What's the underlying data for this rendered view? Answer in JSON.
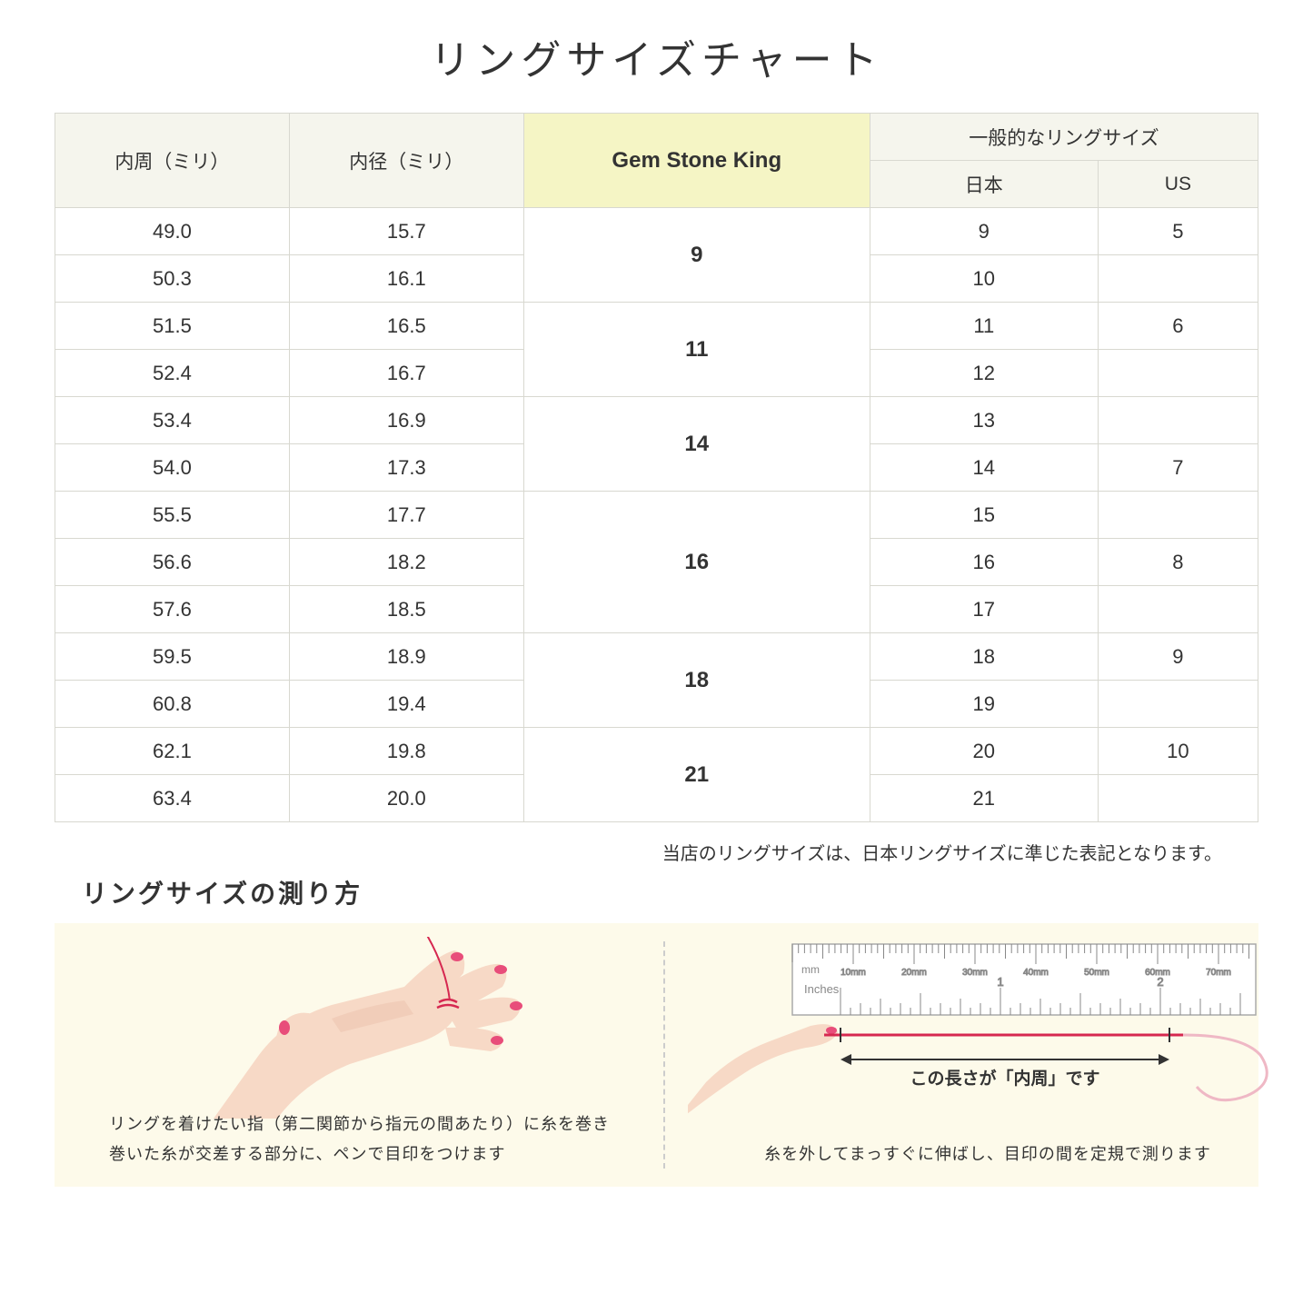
{
  "title": "リングサイズチャート",
  "table": {
    "headers": {
      "col1": "内周（ミリ）",
      "col2": "内径（ミリ）",
      "col3": "Gem Stone King",
      "col4_group": "一般的なリングサイズ",
      "col4a": "日本",
      "col4b": "US"
    },
    "rows": [
      {
        "c": "49.0",
        "d": "15.7",
        "gsk": "9",
        "jp": "9",
        "us": "5",
        "gsk_span": 2
      },
      {
        "c": "50.3",
        "d": "16.1",
        "jp": "10",
        "us": ""
      },
      {
        "c": "51.5",
        "d": "16.5",
        "gsk": "11",
        "jp": "11",
        "us": "6",
        "gsk_span": 2
      },
      {
        "c": "52.4",
        "d": "16.7",
        "jp": "12",
        "us": ""
      },
      {
        "c": "53.4",
        "d": "16.9",
        "gsk": "14",
        "jp": "13",
        "us": "",
        "gsk_span": 2
      },
      {
        "c": "54.0",
        "d": "17.3",
        "jp": "14",
        "us": "7"
      },
      {
        "c": "55.5",
        "d": "17.7",
        "gsk": "16",
        "jp": "15",
        "us": "",
        "gsk_span": 3
      },
      {
        "c": "56.6",
        "d": "18.2",
        "jp": "16",
        "us": "8"
      },
      {
        "c": "57.6",
        "d": "18.5",
        "jp": "17",
        "us": ""
      },
      {
        "c": "59.5",
        "d": "18.9",
        "gsk": "18",
        "jp": "18",
        "us": "9",
        "gsk_span": 2
      },
      {
        "c": "60.8",
        "d": "19.4",
        "jp": "19",
        "us": ""
      },
      {
        "c": "62.1",
        "d": "19.8",
        "gsk": "21",
        "jp": "20",
        "us": "10",
        "gsk_span": 2
      },
      {
        "c": "63.4",
        "d": "20.0",
        "jp": "21",
        "us": ""
      }
    ]
  },
  "note": "当店のリングサイズは、日本リングサイズに準じた表記となります。",
  "subtitle": "リングサイズの測り方",
  "colors": {
    "header_bg": "#f5f5ed",
    "highlight_bg": "#f5f5c5",
    "border": "#d8d8d0",
    "panel_bg": "#fdfaea",
    "skin": "#f7d9c6",
    "skin_shadow": "#ecc2ab",
    "nail": "#e84d7a",
    "thread": "#d62850",
    "ruler_text": "#888"
  },
  "panel_left": {
    "caption_line1": "リングを着けたい指（第二関節から指元の間あたり）に糸を巻き",
    "caption_line2": "巻いた糸が交差する部分に、ペンで目印をつけます"
  },
  "panel_right": {
    "measure_label": "この長さが「内周」です",
    "caption": "糸を外してまっすぐに伸ばし、目印の間を定規で測ります",
    "ruler_mm": "mm",
    "ruler_inches": "Inches",
    "ruler_mm_labels": [
      "10mm",
      "20mm",
      "30mm",
      "40mm",
      "50mm",
      "60mm",
      "70mm"
    ],
    "ruler_inch_labels": [
      "1",
      "2"
    ]
  }
}
